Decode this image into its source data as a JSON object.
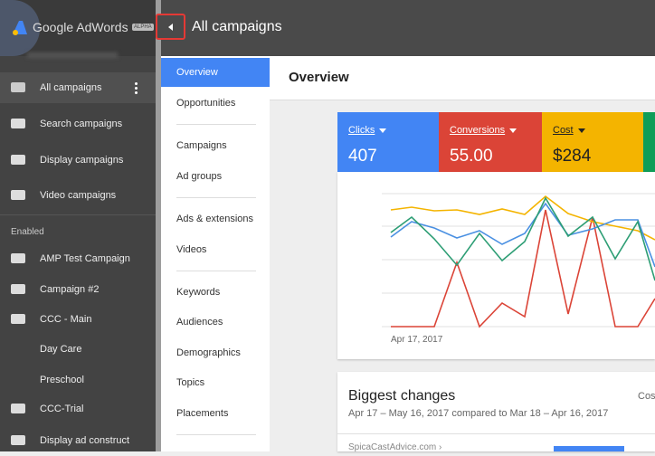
{
  "sidebar": {
    "brand": "Google AdWords",
    "badge": "ALPHA",
    "items": [
      "All campaigns",
      "Search campaigns",
      "Display campaigns",
      "Video campaigns"
    ],
    "section": "Enabled",
    "campaigns": [
      "AMP Test Campaign",
      "Campaign #2",
      "CCC - Main",
      "Day Care",
      "Preschool",
      "CCC-Trial",
      "Display ad construct"
    ]
  },
  "topbar": {
    "title": "All campaigns"
  },
  "nav": {
    "items": [
      "Overview",
      "Opportunities",
      "Campaigns",
      "Ad groups",
      "Ads & extensions",
      "Videos",
      "Keywords",
      "Audiences",
      "Demographics",
      "Topics",
      "Placements"
    ]
  },
  "main": {
    "title": "Overview",
    "metrics": [
      {
        "label": "Clicks",
        "value": "407"
      },
      {
        "label": "Conversions",
        "value": "55.00"
      },
      {
        "label": "Cost",
        "value": "$284"
      }
    ],
    "chart": {
      "start_date": "Apr 17, 2017"
    },
    "changes": {
      "title": "Biggest changes",
      "subtitle": "Apr 17 – May 16, 2017 compared to Mar 18 – Apr 16, 2017",
      "column": "Cos",
      "row": "SpicaCastAdvice.com ›"
    }
  }
}
